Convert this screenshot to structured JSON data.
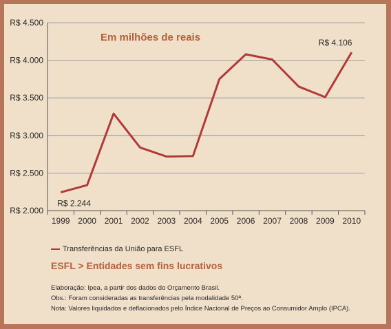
{
  "chart_data": {
    "type": "line",
    "subtitle": "Em milhões de reais",
    "categories": [
      "1999",
      "2000",
      "2001",
      "2002",
      "2003",
      "2004",
      "2005",
      "2006",
      "2007",
      "2008",
      "2009",
      "2010"
    ],
    "series": [
      {
        "name": "Transferências da União para ESFL",
        "values": [
          2244,
          2340,
          3290,
          2840,
          2720,
          2725,
          3750,
          4080,
          4010,
          3650,
          3510,
          4106
        ],
        "color": "#b03a3a"
      }
    ],
    "y_ticks": [
      "R$ 2.000",
      "R$ 2.500",
      "R$ 3.000",
      "R$ 3.500",
      "R$ 4.000",
      "R$ 4.500"
    ],
    "ylim": [
      2000,
      4500
    ],
    "annotations": [
      {
        "category": "1999",
        "text": "R$ 2.244"
      },
      {
        "category": "2010",
        "text": "R$ 4.106"
      }
    ],
    "grid": "horizontal",
    "legend_position": "bottom-left"
  },
  "legend_label": "Transferências da União para ESFL",
  "abbreviation": "ESFL > Entidades sem fins lucrativos",
  "notes": [
    "Elaboração: Ipea, a partir dos dados do Orçamento Brasil.",
    "Obs.: Foram consideradas as transferências pela modalidade 50ª.",
    "Nota: Valores liquidados e deflacionados pelo Índice Nacional de Preços ao Consumidor Amplo (IPCA)."
  ]
}
